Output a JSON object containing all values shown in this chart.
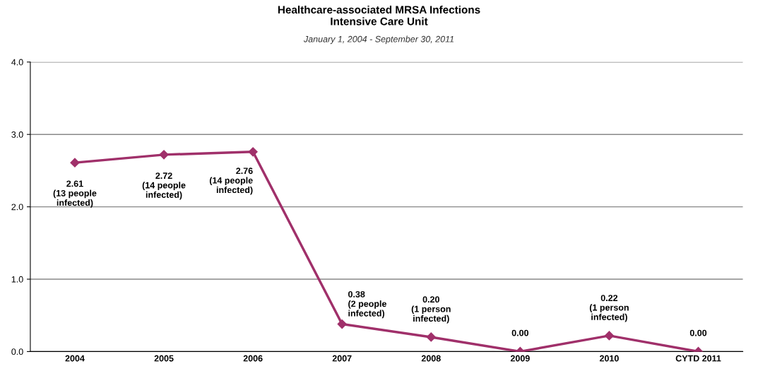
{
  "chart_data": {
    "type": "line",
    "title": "Healthcare-associated MRSA Infections\nIntensive Care Unit",
    "subtitle": "January 1, 2004 - September 30, 2011",
    "categories": [
      "2004",
      "2005",
      "2006",
      "2007",
      "2008",
      "2009",
      "2010",
      "CYTD 2011"
    ],
    "series": [
      {
        "color": "#a0306a",
        "values": [
          2.61,
          2.72,
          2.76,
          0.38,
          0.2,
          0.0,
          0.22,
          0.0
        ],
        "value_labels": [
          "2.61\n(13 people\ninfected)",
          "2.72\n(14 people\ninfected)",
          "2.76\n(14 people\ninfected)",
          "0.38\n(2 people\ninfected)",
          "0.20\n(1 person\ninfected)",
          "0.00",
          "0.22\n(1 person\ninfected)",
          "0.00"
        ]
      }
    ],
    "ylim": [
      0,
      4
    ],
    "yticks": [
      {
        "value": 0,
        "label": "0.0"
      },
      {
        "value": 1,
        "label": "1.0"
      },
      {
        "value": 2,
        "label": "2.0"
      },
      {
        "value": 3,
        "label": "3.0"
      },
      {
        "value": 4,
        "label": "4.0"
      }
    ],
    "grid": "y",
    "marker": "diamond",
    "line_style": "solid",
    "legend": false
  }
}
